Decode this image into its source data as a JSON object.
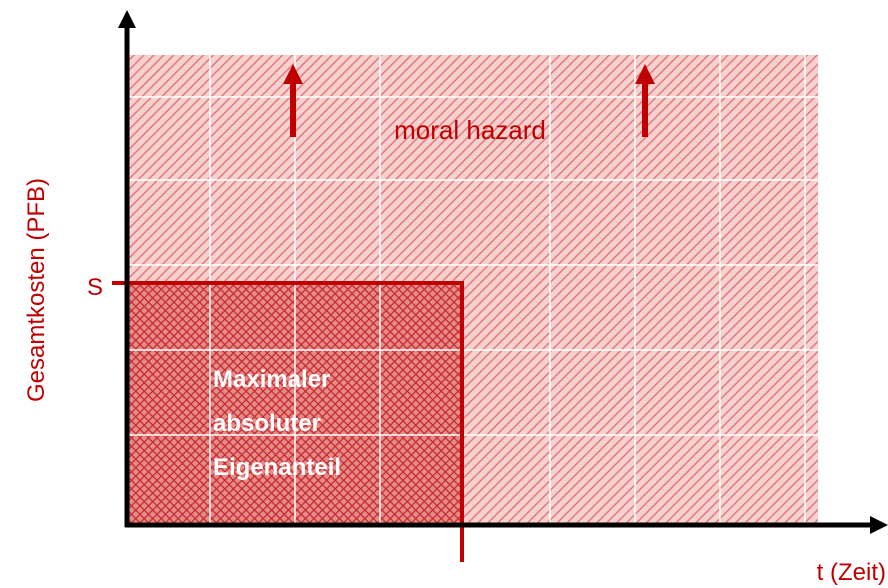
{
  "axes": {
    "y_label": "Gesamtkosten (PFB)",
    "x_label": "t (Zeit)"
  },
  "labels": {
    "threshold": "S",
    "region_upper": "moral hazard",
    "region_lower": [
      "Maximaler",
      "absoluter",
      "Eigenanteil"
    ]
  }
}
